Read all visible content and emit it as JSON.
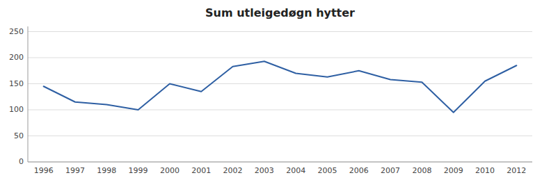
{
  "chart_data": {
    "type": "line",
    "title": "Sum utleigedøgn hytter",
    "categories": [
      "1996",
      "1997",
      "1998",
      "1999",
      "2000",
      "2001",
      "2002",
      "2003",
      "2004",
      "2005",
      "2006",
      "2007",
      "2008",
      "2009",
      "2010",
      "2012"
    ],
    "values": [
      145,
      115,
      110,
      100,
      150,
      135,
      183,
      193,
      170,
      163,
      175,
      158,
      153,
      95,
      155,
      185
    ],
    "color": "#2E5FA3",
    "ylim": [
      0,
      260
    ],
    "yticks": [
      0,
      50,
      100,
      150,
      200,
      250
    ],
    "grid": true
  }
}
